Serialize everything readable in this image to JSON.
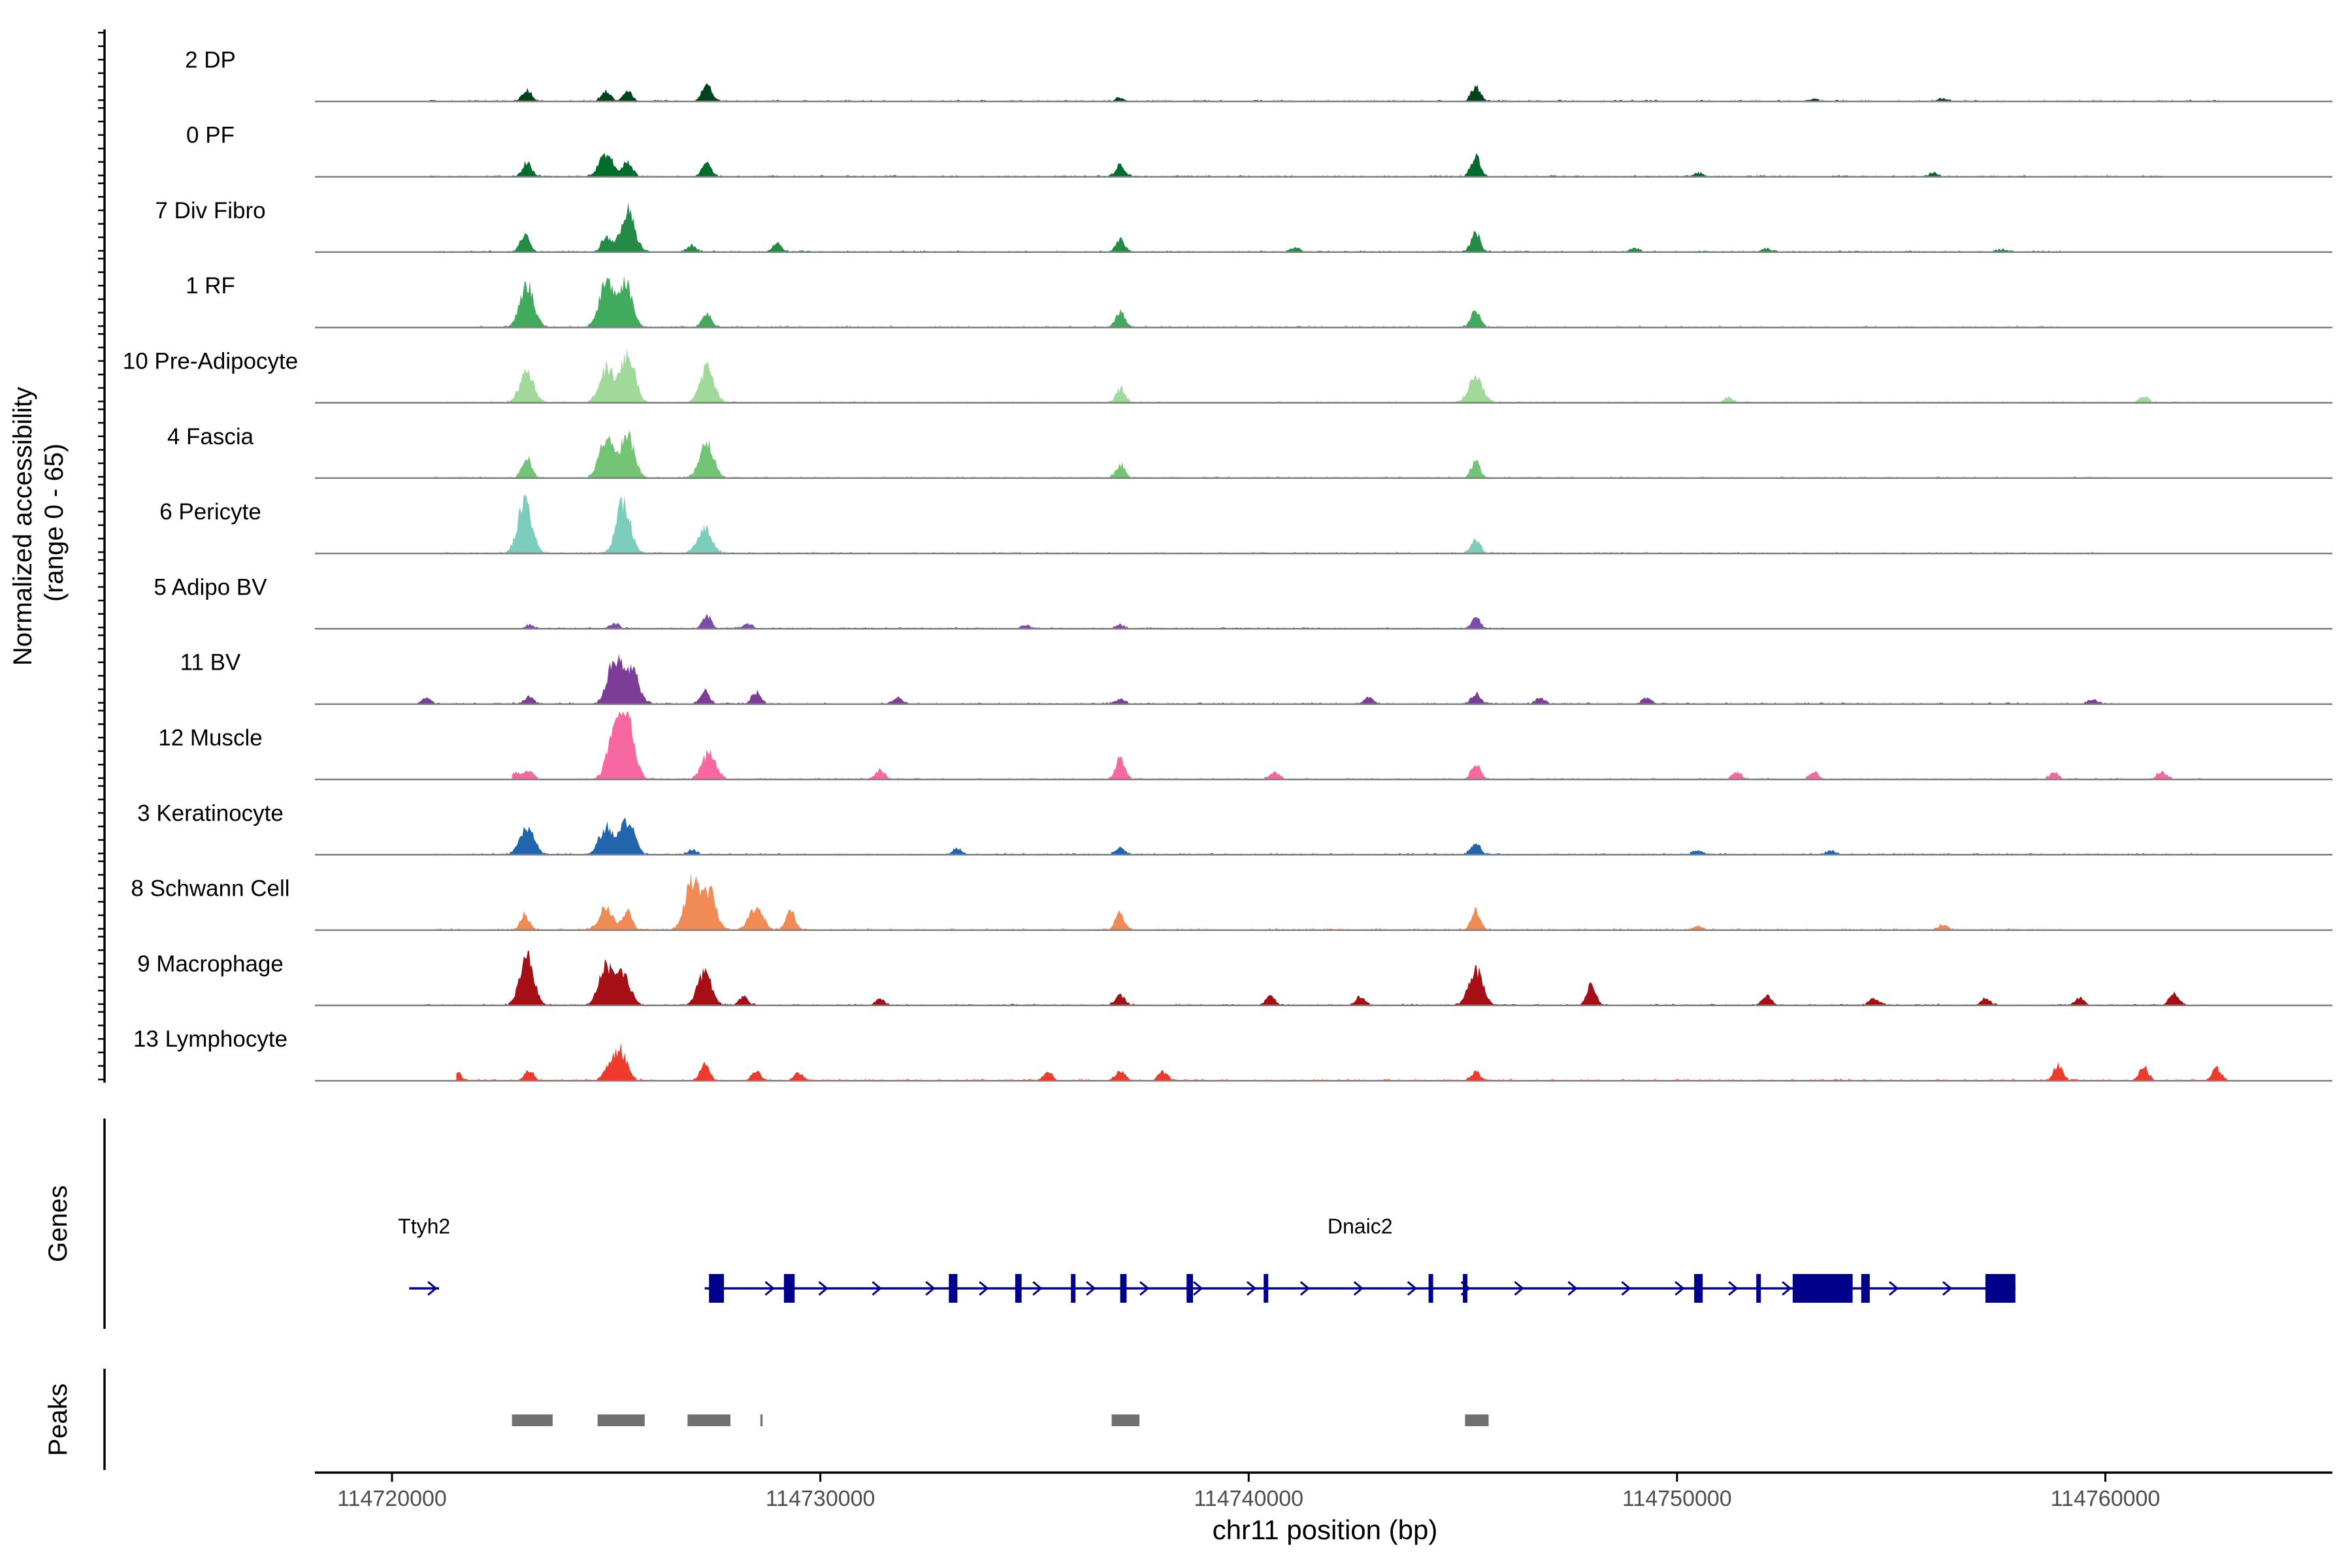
{
  "chart_data": {
    "type": "area",
    "chromosome": "chr11",
    "xlabel": "chr11 position (bp)",
    "ylabel": "Normalized accessibility\n(range 0 - 65)",
    "ylabel_lines": [
      "Normalized accessibility",
      "(range 0 - 65)"
    ],
    "ylim": [
      0,
      65
    ],
    "xlim": [
      114718200,
      114765300
    ],
    "x_ticks": [
      114720000,
      114730000,
      114740000,
      114750000,
      114760000
    ],
    "x_tick_labels": [
      "114720000",
      "114730000",
      "114740000",
      "114750000",
      "114760000"
    ],
    "grid": false,
    "legend": "none",
    "tracks": [
      {
        "name": "2 DP",
        "color": "#00441b",
        "start": 114720600,
        "end": 114762700,
        "peaks": [
          [
            114723150,
            14
          ],
          [
            114725000,
            13
          ],
          [
            114725500,
            12
          ],
          [
            114727350,
            22
          ],
          [
            114737000,
            4
          ],
          [
            114745300,
            17
          ],
          [
            114753200,
            3
          ],
          [
            114756200,
            3
          ]
        ]
      },
      {
        "name": "0 PF",
        "color": "#006d2c",
        "start": 114720600,
        "end": 114761300,
        "peaks": [
          [
            114723150,
            17
          ],
          [
            114725000,
            27
          ],
          [
            114725500,
            18
          ],
          [
            114727350,
            18
          ],
          [
            114737000,
            13
          ],
          [
            114745300,
            25
          ],
          [
            114750500,
            4
          ],
          [
            114756000,
            4
          ]
        ]
      },
      {
        "name": "7 Div Fibro",
        "color": "#238b45",
        "start": 114721000,
        "end": 114759000,
        "peaks": [
          [
            114723100,
            20
          ],
          [
            114725000,
            18
          ],
          [
            114725500,
            48
          ],
          [
            114727000,
            7
          ],
          [
            114729000,
            10
          ],
          [
            114737000,
            14
          ],
          [
            114741100,
            5
          ],
          [
            114745300,
            22
          ],
          [
            114749000,
            5
          ],
          [
            114752100,
            4
          ],
          [
            114757600,
            3
          ]
        ]
      },
      {
        "name": "1 RF",
        "color": "#41ab5d",
        "start": 114722000,
        "end": 114759000,
        "peaks": [
          [
            114723150,
            50
          ],
          [
            114725000,
            50
          ],
          [
            114725450,
            50
          ],
          [
            114727350,
            16
          ],
          [
            114737000,
            19
          ],
          [
            114745300,
            20
          ]
        ]
      },
      {
        "name": "10 Pre-Adipocyte",
        "color": "#a1d99b",
        "start": 114721000,
        "end": 114762700,
        "peaks": [
          [
            114723150,
            35
          ],
          [
            114725000,
            40
          ],
          [
            114725500,
            60
          ],
          [
            114727350,
            40
          ],
          [
            114737000,
            16
          ],
          [
            114745300,
            30
          ],
          [
            114751200,
            6
          ],
          [
            114760900,
            7
          ]
        ]
      },
      {
        "name": "4 Fascia",
        "color": "#74c476",
        "start": 114721000,
        "end": 114760000,
        "peaks": [
          [
            114723150,
            25
          ],
          [
            114725000,
            45
          ],
          [
            114725500,
            50
          ],
          [
            114727350,
            40
          ],
          [
            114737000,
            15
          ],
          [
            114745300,
            20
          ]
        ]
      },
      {
        "name": "6 Pericyte",
        "color": "#7ccdbb",
        "start": 114721000,
        "end": 114760000,
        "peaks": [
          [
            114723100,
            62
          ],
          [
            114725400,
            58
          ],
          [
            114727300,
            30
          ],
          [
            114745300,
            16
          ]
        ]
      },
      {
        "name": "5 Adipo BV",
        "color": "#7b4fa8",
        "start": 114723000,
        "end": 114746000,
        "peaks": [
          [
            114723200,
            4
          ],
          [
            114725200,
            6
          ],
          [
            114727350,
            15
          ],
          [
            114728300,
            6
          ],
          [
            114734800,
            4
          ],
          [
            114737000,
            4
          ],
          [
            114745300,
            13
          ]
        ]
      },
      {
        "name": "11 BV",
        "color": "#7d3c98",
        "start": 114720600,
        "end": 114760300,
        "peaks": [
          [
            114720800,
            7
          ],
          [
            114723200,
            8
          ],
          [
            114725200,
            52
          ],
          [
            114725600,
            38
          ],
          [
            114727300,
            16
          ],
          [
            114728500,
            14
          ],
          [
            114731800,
            7
          ],
          [
            114737000,
            6
          ],
          [
            114742800,
            8
          ],
          [
            114745300,
            12
          ],
          [
            114746800,
            7
          ],
          [
            114749300,
            7
          ],
          [
            114759700,
            5
          ]
        ]
      },
      {
        "name": "12 Muscle",
        "color": "#f768a1",
        "start": 114722800,
        "end": 114762400,
        "peaks": [
          [
            114722900,
            8
          ],
          [
            114723200,
            10
          ],
          [
            114725200,
            58
          ],
          [
            114725500,
            65
          ],
          [
            114727400,
            30
          ],
          [
            114731400,
            10
          ],
          [
            114737000,
            25
          ],
          [
            114740600,
            9
          ],
          [
            114745300,
            18
          ],
          [
            114751400,
            8
          ],
          [
            114753200,
            9
          ],
          [
            114758800,
            8
          ],
          [
            114761300,
            9
          ]
        ]
      },
      {
        "name": "3 Keratinocyte",
        "color": "#2166ac",
        "start": 114721000,
        "end": 114762700,
        "peaks": [
          [
            114723150,
            33
          ],
          [
            114725000,
            32
          ],
          [
            114725500,
            40
          ],
          [
            114727000,
            5
          ],
          [
            114733200,
            7
          ],
          [
            114737000,
            8
          ],
          [
            114745300,
            14
          ],
          [
            114750500,
            5
          ],
          [
            114753600,
            5
          ]
        ]
      },
      {
        "name": "8 Schwann Cell",
        "color": "#f18b56",
        "start": 114721000,
        "end": 114759000,
        "peaks": [
          [
            114723100,
            18
          ],
          [
            114725000,
            26
          ],
          [
            114725500,
            22
          ],
          [
            114727000,
            58
          ],
          [
            114727400,
            45
          ],
          [
            114728500,
            26
          ],
          [
            114729300,
            22
          ],
          [
            114737000,
            20
          ],
          [
            114745300,
            22
          ],
          [
            114750500,
            5
          ],
          [
            114756200,
            6
          ]
        ]
      },
      {
        "name": "9 Macrophage",
        "color": "#a50f15",
        "start": 114720700,
        "end": 114762300,
        "peaks": [
          [
            114723150,
            58
          ],
          [
            114725000,
            45
          ],
          [
            114725400,
            35
          ],
          [
            114727300,
            38
          ],
          [
            114728200,
            10
          ],
          [
            114731400,
            8
          ],
          [
            114737000,
            12
          ],
          [
            114740500,
            10
          ],
          [
            114742600,
            10
          ],
          [
            114745300,
            42
          ],
          [
            114748000,
            24
          ],
          [
            114752100,
            12
          ],
          [
            114754600,
            8
          ],
          [
            114757200,
            8
          ],
          [
            114759400,
            9
          ],
          [
            114761600,
            14
          ]
        ]
      },
      {
        "name": "13 Lymphocyte",
        "color": "#ef3b2c",
        "start": 114721500,
        "end": 114763000,
        "peaks": [
          [
            114721500,
            10
          ],
          [
            114723200,
            12
          ],
          [
            114725000,
            8
          ],
          [
            114725300,
            38
          ],
          [
            114727300,
            20
          ],
          [
            114728500,
            12
          ],
          [
            114729500,
            9
          ],
          [
            114735300,
            10
          ],
          [
            114737000,
            12
          ],
          [
            114738000,
            10
          ],
          [
            114745300,
            10
          ],
          [
            114758900,
            18
          ],
          [
            114760900,
            16
          ],
          [
            114762600,
            14
          ]
        ]
      }
    ],
    "genes": [
      {
        "name": "Ttyh2",
        "strand": "+",
        "start": 114720400,
        "end": 114721100,
        "exons": []
      },
      {
        "name": "Dnaic2",
        "strand": "+",
        "start": 114727300,
        "end": 114757900,
        "exons": [
          [
            114727400,
            114727750
          ],
          [
            114729150,
            114729400
          ],
          [
            114733000,
            114733200
          ],
          [
            114734550,
            114734700
          ],
          [
            114735850,
            114735950
          ],
          [
            114737000,
            114737150
          ],
          [
            114738550,
            114738700
          ],
          [
            114740350,
            114740450
          ],
          [
            114744200,
            114744300
          ],
          [
            114745000,
            114745100
          ],
          [
            114750400,
            114750600
          ],
          [
            114751850,
            114751950
          ],
          [
            114752700,
            114754100
          ],
          [
            114754300,
            114754500
          ],
          [
            114757200,
            114757900
          ]
        ]
      }
    ],
    "peaks": [
      [
        114722800,
        114723750
      ],
      [
        114724800,
        114725900
      ],
      [
        114726900,
        114727900
      ],
      [
        114728600,
        114728650
      ],
      [
        114736800,
        114737450
      ],
      [
        114745050,
        114745600
      ]
    ],
    "panel_labels": {
      "genes": "Genes",
      "peaks": "Peaks"
    }
  }
}
